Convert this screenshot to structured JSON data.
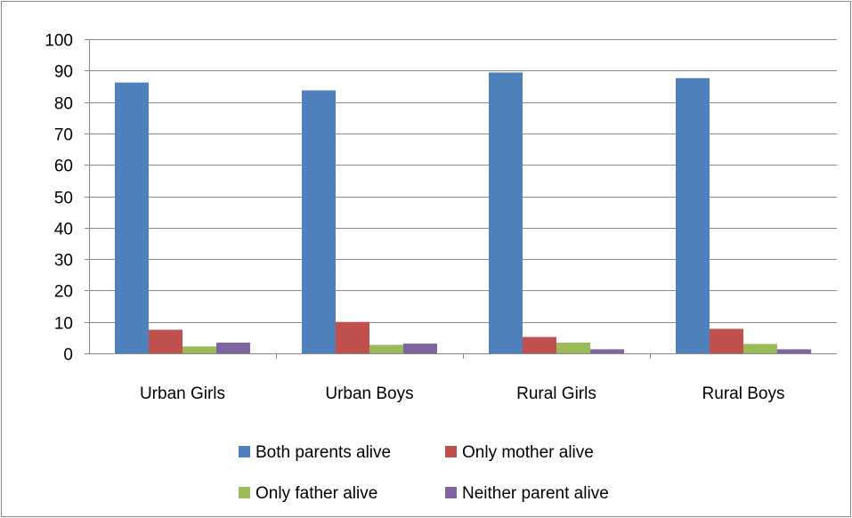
{
  "chart_data": {
    "type": "bar",
    "categories": [
      "Urban Girls",
      "Urban Boys",
      "Rural Girls",
      "Rural Boys"
    ],
    "series": [
      {
        "name": "Both parents alive",
        "color": "#4F81BD",
        "values": [
          86.2,
          83.7,
          89.4,
          87.6
        ]
      },
      {
        "name": "Only mother alive",
        "color": "#C0504D",
        "values": [
          7.5,
          10.0,
          5.2,
          7.8
        ]
      },
      {
        "name": "Only father alive",
        "color": "#9BBB59",
        "values": [
          2.2,
          2.7,
          3.4,
          3.0
        ]
      },
      {
        "name": "Neither parent alive",
        "color": "#8064A2",
        "values": [
          3.4,
          3.1,
          1.3,
          1.3
        ]
      }
    ],
    "yticks": [
      0,
      10,
      20,
      30,
      40,
      50,
      60,
      70,
      80,
      90,
      100
    ],
    "ylim": [
      0,
      100
    ],
    "grid": true,
    "legend_position": "bottom"
  }
}
